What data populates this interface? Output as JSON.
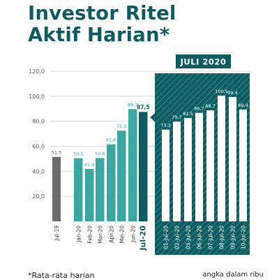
{
  "title_lines": [
    "Investor Ritel",
    "Aktif Harian*"
  ],
  "footnote": "*Rata-rata harian",
  "units_note": "angka dalam ribu",
  "colors": {
    "title": "#0e5c61",
    "gray_bar": "#6b6b6b",
    "monthly_bar": "#3aa8a0",
    "highlight_bar": "#0e5c61",
    "panel": "#0e5c61",
    "daily_bar": "#ffffff",
    "grid": "#d9d9d9"
  },
  "chart_data": {
    "type": "bar",
    "ylim": [
      0,
      120
    ],
    "yticks": [
      20,
      40,
      60,
      80,
      100,
      120
    ],
    "ytick_labels": [
      "20,0",
      "40,0",
      "60,0",
      "80,0",
      "100,0",
      "120,0"
    ],
    "panel_label": "JULI 2020",
    "groups": [
      {
        "name": "reference",
        "color_key": "gray_bar",
        "categories": [
          "Jul-19"
        ],
        "values": [
          51.5
        ],
        "labels": [
          "51,5"
        ]
      },
      {
        "name": "monthly",
        "color_key": "monthly_bar",
        "highlight_last": true,
        "categories": [
          "Jan-20",
          "Feb-20",
          "Mar-20",
          "Apr-20",
          "Mei-20",
          "Jun-20",
          "Jul-20"
        ],
        "values": [
          50.5,
          41.9,
          50.6,
          61.6,
          72.5,
          89.7,
          87.5
        ],
        "labels": [
          "50,5",
          "41,9",
          "50,6",
          "61,6",
          "72,5",
          "89,7",
          "87,5"
        ]
      },
      {
        "name": "daily",
        "color_key": "daily_bar",
        "categories": [
          "01-Jul-20",
          "02-Jul-20",
          "03-Jul-20",
          "06-Jul-20",
          "07-Jul-20",
          "08-Jul-20",
          "09-Jul-20",
          "10-Jul-20"
        ],
        "values": [
          73.3,
          79.7,
          82.5,
          86.7,
          88.7,
          100.5,
          99.4,
          89.4
        ],
        "labels": [
          "73,3",
          "79,7",
          "82,5",
          "86,7",
          "88,7",
          "100,5",
          "99,4",
          "89,4"
        ]
      }
    ]
  }
}
